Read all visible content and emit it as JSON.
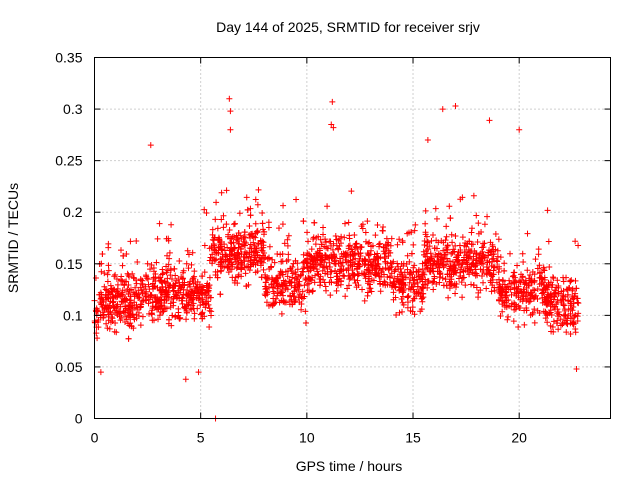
{
  "chart_data": {
    "type": "scatter",
    "title": "Day 144 of 2025, SRMTID for receiver srjv",
    "xlabel": "GPS time / hours",
    "ylabel": "SRMTID / TECUs",
    "xlim": [
      0,
      24.3
    ],
    "ylim": [
      0,
      0.35
    ],
    "x_ticks": [
      0,
      5,
      10,
      15,
      20
    ],
    "x_tick_labels": [
      "0",
      "5",
      "10",
      "15",
      "20"
    ],
    "y_ticks": [
      0,
      0.05,
      0.1,
      0.15,
      0.2,
      0.25,
      0.3,
      0.35
    ],
    "y_tick_labels": [
      "0",
      "0.05",
      "0.1",
      "0.15",
      "0.2",
      "0.25",
      "0.3",
      "0.35"
    ],
    "grid": true,
    "marker": "+",
    "color": "#ff0000",
    "series": [
      {
        "name": "SRMTID",
        "x_range": [
          0,
          22.8
        ],
        "approx_count": 2600,
        "outliers": [
          {
            "x": 6.35,
            "y": 0.31
          },
          {
            "x": 6.4,
            "y": 0.298
          },
          {
            "x": 6.4,
            "y": 0.28
          },
          {
            "x": 11.2,
            "y": 0.307
          },
          {
            "x": 11.15,
            "y": 0.285
          },
          {
            "x": 11.25,
            "y": 0.282
          },
          {
            "x": 17.0,
            "y": 0.303
          },
          {
            "x": 16.4,
            "y": 0.3
          },
          {
            "x": 18.6,
            "y": 0.289
          },
          {
            "x": 20.0,
            "y": 0.28
          },
          {
            "x": 2.65,
            "y": 0.265
          },
          {
            "x": 15.7,
            "y": 0.27
          },
          {
            "x": 5.7,
            "y": 0.0
          },
          {
            "x": 0.3,
            "y": 0.045
          },
          {
            "x": 4.3,
            "y": 0.038
          },
          {
            "x": 4.9,
            "y": 0.045
          },
          {
            "x": 22.7,
            "y": 0.048
          }
        ]
      }
    ]
  }
}
